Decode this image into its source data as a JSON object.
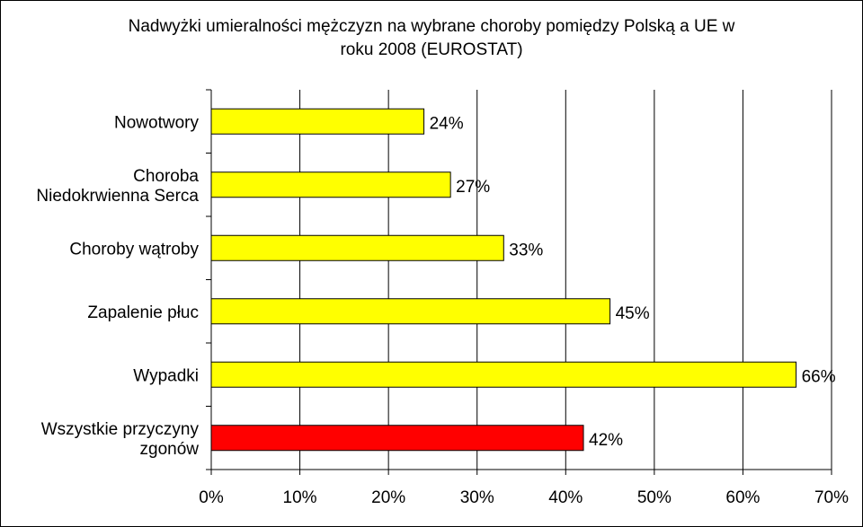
{
  "chart_data": {
    "type": "bar",
    "orientation": "horizontal",
    "title_line1": "Nadwyżki umieralności mężczyzn na wybrane choroby pomiędzy Polską a UE w",
    "title_line2": "roku 2008 (EUROSTAT)",
    "categories": [
      [
        "Nowotwory"
      ],
      [
        "Choroba",
        "Niedokrwienna Serca"
      ],
      [
        "Choroby wątroby"
      ],
      [
        "Zapalenie płuc"
      ],
      [
        "Wypadki"
      ],
      [
        "Wszystkie przyczyny",
        "zgonów"
      ]
    ],
    "values": [
      24,
      27,
      33,
      45,
      66,
      42
    ],
    "value_labels": [
      "24%",
      "27%",
      "33%",
      "45%",
      "66%",
      "42%"
    ],
    "bar_colors": [
      "#ffff00",
      "#ffff00",
      "#ffff00",
      "#ffff00",
      "#ffff00",
      "#ff0000"
    ],
    "xlim": [
      0,
      70
    ],
    "x_ticks": [
      0,
      10,
      20,
      30,
      40,
      50,
      60,
      70
    ],
    "x_tick_labels": [
      "0%",
      "10%",
      "20%",
      "30%",
      "40%",
      "50%",
      "60%",
      "70%"
    ],
    "grid": "vertical",
    "legend": "none"
  }
}
